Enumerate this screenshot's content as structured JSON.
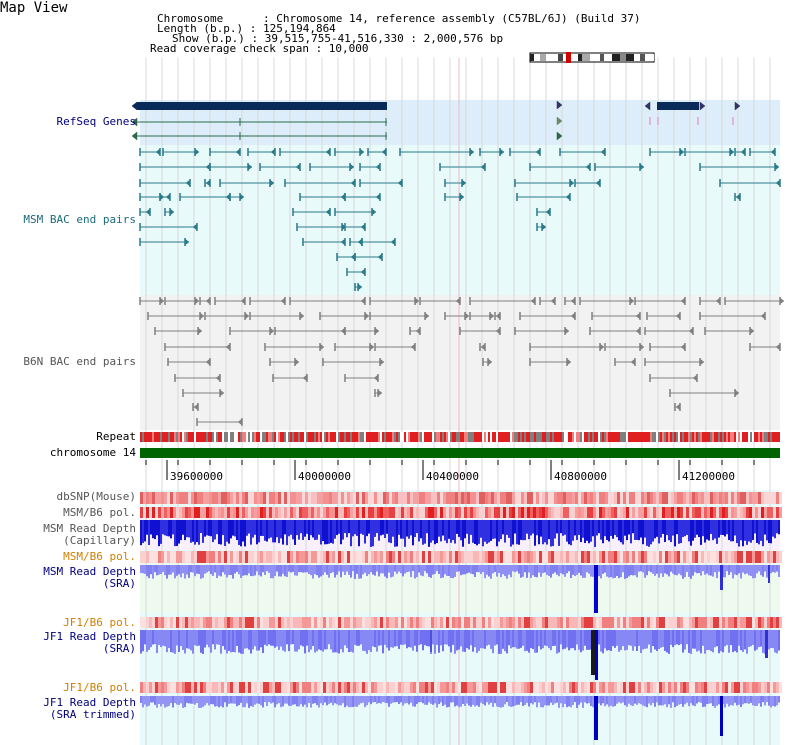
{
  "title": "Map View",
  "header": {
    "chromosome_line": "Chromosome      : Chromosome 14, reference assembly (C57BL/6J) (Build 37)",
    "length_line": "Length (b.p.) : 125,194,864",
    "show_line": "Show (b.p.) : 39,515,755-41,516,330 : 2,000,576 bp",
    "coverage_line": "Read coverage check span : 10,000"
  },
  "tracks": {
    "refseq": "RefSeq Genes",
    "msm_bac": "MSM BAC end pairs",
    "b6n_bac": "B6N BAC end pairs",
    "repeat": "Repeat",
    "chromosome": "chromosome 14",
    "dbsnp": "dbSNP(Mouse)",
    "msm_b6_pol_1": "MSM/B6 pol.",
    "msm_read_depth_cap_1": "MSM Read Depth",
    "msm_read_depth_cap_2": "(Capillary)",
    "msm_b6_pol_2": "MSM/B6 pol.",
    "msm_read_depth_sra_1": "MSM Read Depth",
    "msm_read_depth_sra_2": "(SRA)",
    "jf1_b6_pol_1": "JF1/B6 pol.",
    "jf1_read_depth_sra_1": "JF1 Read Depth",
    "jf1_read_depth_sra_2": "(SRA)",
    "jf1_b6_pol_2": "JF1/B6 pol.",
    "jf1_read_depth_trim_1": "JF1 Read Depth",
    "jf1_read_depth_trim_2": "(SRA trimmed)"
  },
  "axis": {
    "ticks": [
      "39600000",
      "40000000",
      "40400000",
      "40800000",
      "41200000"
    ]
  },
  "colors": {
    "navy": "#0a2a5a",
    "teal": "#2a7a8a",
    "gray": "#808080",
    "green": "#006400",
    "blue_label": "#000080",
    "orange_label": "#d08000",
    "depth_blue": "#8080f0"
  }
}
